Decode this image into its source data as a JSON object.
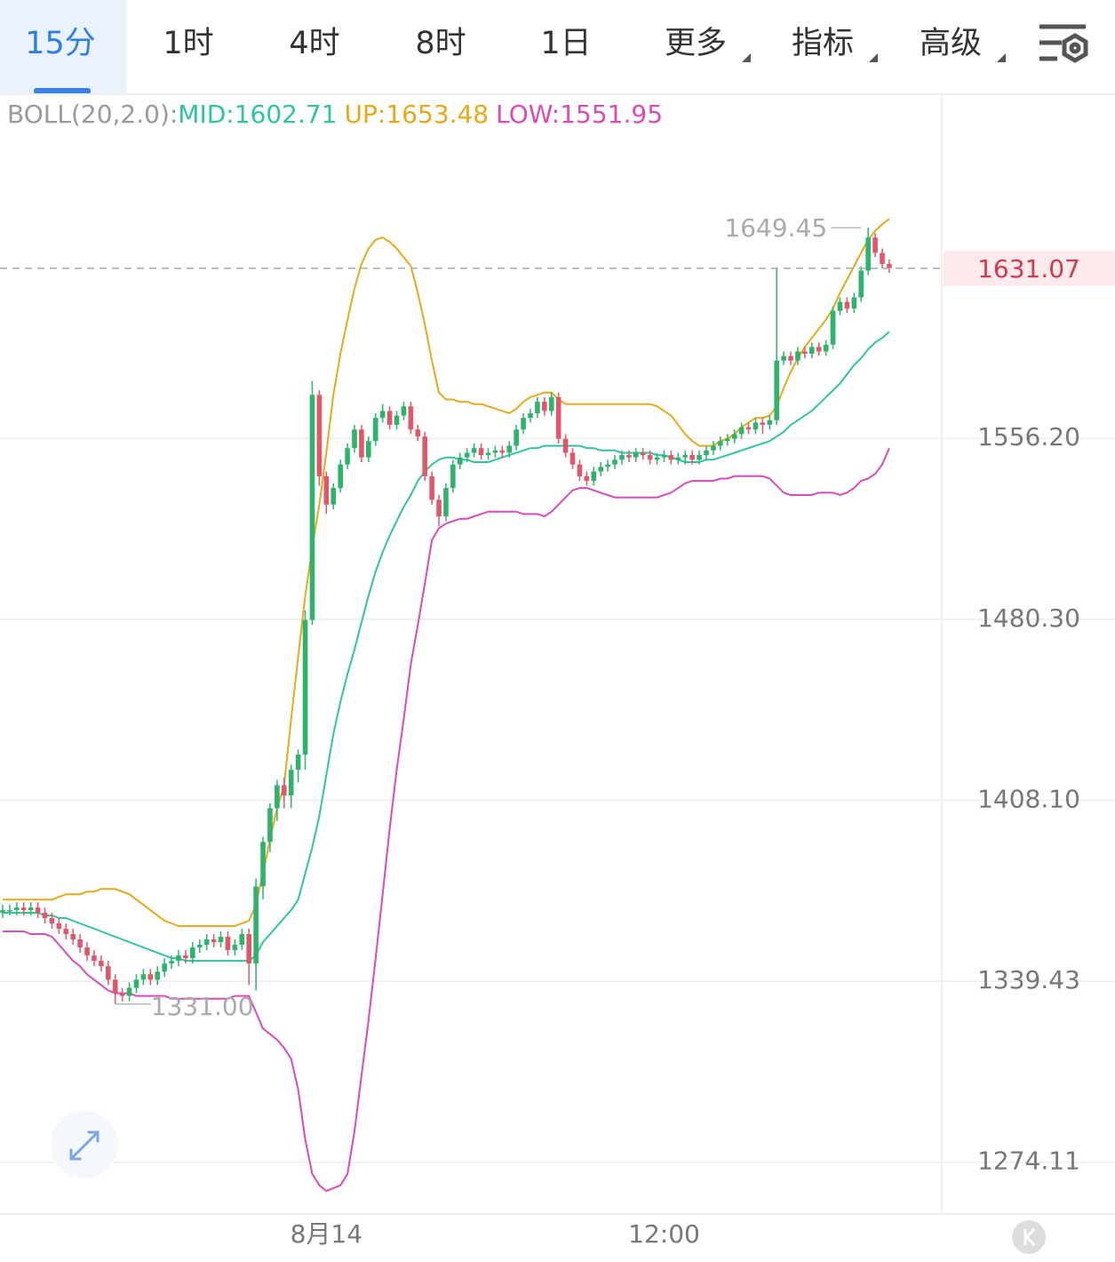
{
  "tabs": [
    "15分",
    "1时",
    "4时",
    "8时",
    "1日",
    "更多",
    "指标",
    "高级"
  ],
  "active_tab": 0,
  "chart_data": {
    "type": "candlestick",
    "indicator": "BOLL(20,2.0):",
    "categories": [
      null,
      null,
      null,
      null,
      null,
      null,
      null,
      null,
      null,
      null,
      null,
      null,
      null,
      null,
      null,
      null,
      null,
      null,
      null,
      null,
      null,
      null,
      null,
      null,
      null,
      null,
      null,
      null,
      null,
      null,
      null,
      null,
      null,
      null,
      null,
      null,
      null,
      null,
      null,
      null,
      null,
      null,
      null,
      null,
      null,
      null,
      "8月14",
      null,
      null,
      null,
      null,
      null,
      null,
      null,
      null,
      null,
      null,
      null,
      null,
      null,
      null,
      null,
      null,
      null,
      null,
      null,
      null,
      null,
      null,
      null,
      null,
      null,
      null,
      null,
      null,
      null,
      null,
      null,
      null,
      null,
      null,
      null,
      null,
      null,
      null,
      null,
      null,
      null,
      null,
      null,
      null,
      null,
      null,
      null,
      "12:00",
      null,
      null,
      null,
      null,
      null,
      null,
      null,
      null,
      null,
      null,
      null,
      null,
      null,
      null,
      null,
      null,
      null,
      null,
      null,
      null,
      null,
      null,
      null,
      null,
      null,
      null,
      null,
      null,
      null,
      null,
      null,
      null
    ],
    "open": [
      1365,
      1366,
      1366,
      1367,
      1366,
      1367,
      1365,
      1363,
      1361,
      1359,
      1357,
      1355,
      1352,
      1349,
      1347,
      1345,
      1340,
      1335,
      1334,
      1337,
      1340,
      1342,
      1340,
      1343,
      1346,
      1347,
      1349,
      1348,
      1352,
      1353,
      1355,
      1354,
      1356,
      1351,
      1353,
      1357,
      1346,
      1375,
      1392,
      1405,
      1414,
      1410,
      1420,
      1426,
      1480,
      1575,
      1540,
      1528,
      1535,
      1545,
      1552,
      1560,
      1548,
      1555,
      1565,
      1568,
      1562,
      1566,
      1570,
      1560,
      1557,
      1540,
      1530,
      1523,
      1535,
      1545,
      1548,
      1550,
      1552,
      1549,
      1550,
      1551,
      1550,
      1553,
      1560,
      1565,
      1567,
      1572,
      1568,
      1574,
      1556,
      1550,
      1545,
      1540,
      1538,
      1542,
      1544,
      1545,
      1547,
      1549,
      1548,
      1550,
      1549,
      1547,
      1548,
      1549,
      1547,
      1548,
      1549,
      1547,
      1549,
      1551,
      1553,
      1555,
      1556,
      1558,
      1561,
      1560,
      1563,
      1562,
      1564,
      1590,
      1592,
      1590,
      1594,
      1593,
      1596,
      1594,
      1597,
      1612,
      1616,
      1613,
      1618,
      1630,
      1645,
      1638,
      1633
    ],
    "high": [
      1368,
      1368,
      1369,
      1369,
      1369,
      1369,
      1367,
      1365,
      1363,
      1361,
      1359,
      1357,
      1354,
      1351,
      1349,
      1347,
      1342,
      1337,
      1339,
      1342,
      1344,
      1344,
      1345,
      1348,
      1349,
      1351,
      1351,
      1354,
      1355,
      1357,
      1357,
      1358,
      1358,
      1355,
      1359,
      1359,
      1378,
      1394,
      1407,
      1416,
      1417,
      1422,
      1428,
      1484,
      1581,
      1577,
      1542,
      1537,
      1547,
      1554,
      1562,
      1562,
      1557,
      1567,
      1571,
      1570,
      1568,
      1572,
      1572,
      1562,
      1559,
      1542,
      1532,
      1537,
      1547,
      1550,
      1552,
      1554,
      1554,
      1552,
      1553,
      1553,
      1555,
      1562,
      1567,
      1569,
      1574,
      1574,
      1576,
      1576,
      1558,
      1552,
      1547,
      1542,
      1544,
      1546,
      1547,
      1549,
      1551,
      1551,
      1552,
      1552,
      1551,
      1550,
      1551,
      1551,
      1550,
      1551,
      1551,
      1551,
      1553,
      1555,
      1557,
      1558,
      1560,
      1563,
      1563,
      1565,
      1565,
      1566,
      1631,
      1594,
      1594,
      1596,
      1596,
      1598,
      1598,
      1599,
      1614,
      1618,
      1618,
      1620,
      1632,
      1649.45,
      1647,
      1640,
      1635
    ],
    "low": [
      1363,
      1364,
      1364,
      1364,
      1364,
      1363,
      1361,
      1359,
      1357,
      1355,
      1353,
      1350,
      1347,
      1345,
      1343,
      1338,
      1331,
      1332,
      1332,
      1335,
      1338,
      1338,
      1338,
      1341,
      1344,
      1345,
      1346,
      1346,
      1350,
      1351,
      1352,
      1352,
      1349,
      1349,
      1351,
      1338,
      1336,
      1370,
      1388,
      1400,
      1405,
      1405,
      1415,
      1420,
      1478,
      1536,
      1524,
      1526,
      1533,
      1543,
      1550,
      1546,
      1546,
      1553,
      1563,
      1560,
      1560,
      1564,
      1558,
      1555,
      1538,
      1528,
      1519,
      1521,
      1533,
      1543,
      1546,
      1548,
      1547,
      1547,
      1548,
      1548,
      1548,
      1551,
      1558,
      1563,
      1565,
      1566,
      1566,
      1554,
      1548,
      1543,
      1538,
      1536,
      1536,
      1540,
      1542,
      1543,
      1545,
      1546,
      1546,
      1547,
      1545,
      1545,
      1546,
      1545,
      1545,
      1545,
      1545,
      1545,
      1547,
      1549,
      1551,
      1553,
      1554,
      1556,
      1558,
      1558,
      1558,
      1560,
      1562,
      1588,
      1588,
      1588,
      1591,
      1591,
      1592,
      1592,
      1595,
      1610,
      1611,
      1611,
      1616,
      1628,
      1636,
      1631,
      1629
    ],
    "close": [
      1366,
      1366,
      1367,
      1366,
      1367,
      1365,
      1363,
      1361,
      1359,
      1357,
      1355,
      1352,
      1349,
      1347,
      1345,
      1340,
      1335,
      1334,
      1337,
      1340,
      1342,
      1340,
      1343,
      1346,
      1347,
      1349,
      1348,
      1352,
      1353,
      1355,
      1354,
      1356,
      1351,
      1353,
      1357,
      1346,
      1375,
      1392,
      1405,
      1414,
      1410,
      1420,
      1426,
      1480,
      1575,
      1540,
      1528,
      1535,
      1545,
      1552,
      1560,
      1548,
      1555,
      1565,
      1568,
      1562,
      1566,
      1570,
      1560,
      1557,
      1540,
      1530,
      1523,
      1535,
      1545,
      1548,
      1550,
      1552,
      1549,
      1550,
      1551,
      1550,
      1553,
      1560,
      1565,
      1567,
      1572,
      1568,
      1574,
      1556,
      1550,
      1545,
      1540,
      1538,
      1542,
      1544,
      1545,
      1547,
      1549,
      1548,
      1550,
      1549,
      1547,
      1548,
      1549,
      1547,
      1548,
      1549,
      1547,
      1549,
      1551,
      1553,
      1555,
      1556,
      1558,
      1561,
      1560,
      1563,
      1562,
      1564,
      1590,
      1592,
      1590,
      1594,
      1593,
      1596,
      1594,
      1597,
      1612,
      1616,
      1613,
      1618,
      1630,
      1645,
      1638,
      1633,
      1631.07
    ],
    "up_color": "#2db46a",
    "down_color": "#e2566b",
    "series": [
      {
        "label": "MID:1602.71",
        "color": "#2ec4a0",
        "values": [
          1365,
          1365,
          1365,
          1365,
          1365,
          1365,
          1364,
          1364,
          1363,
          1363,
          1362,
          1361,
          1360,
          1359,
          1358,
          1357,
          1356,
          1355,
          1354,
          1353,
          1352,
          1351,
          1350,
          1349,
          1348,
          1348,
          1347,
          1347,
          1347,
          1347,
          1347,
          1347,
          1347,
          1347,
          1347,
          1347,
          1349,
          1354,
          1357,
          1360,
          1363,
          1366,
          1370,
          1380,
          1390,
          1402,
          1418,
          1434,
          1447,
          1458,
          1468,
          1479,
          1490,
          1500,
          1508,
          1515,
          1521,
          1527,
          1532,
          1538,
          1542,
          1545,
          1547,
          1548,
          1548,
          1547,
          1547,
          1546,
          1546,
          1546,
          1547,
          1548,
          1549,
          1550,
          1551,
          1552,
          1552,
          1553,
          1553,
          1553,
          1553,
          1553,
          1553,
          1552,
          1552,
          1551,
          1551,
          1551,
          1550,
          1550,
          1550,
          1550,
          1550,
          1549,
          1549,
          1548,
          1547,
          1546,
          1546,
          1546,
          1547,
          1547,
          1548,
          1549,
          1550,
          1551,
          1552,
          1553,
          1554,
          1555,
          1557,
          1559,
          1562,
          1564,
          1566,
          1568,
          1571,
          1574,
          1577,
          1580,
          1584,
          1588,
          1591,
          1595,
          1598,
          1600,
          1602.71
        ]
      },
      {
        "label": "UP:1653.48",
        "color": "#e5a91a",
        "values": [
          1370,
          1370,
          1370,
          1370,
          1370,
          1370,
          1370,
          1370,
          1371,
          1372,
          1372,
          1372,
          1373,
          1373,
          1374,
          1374,
          1374,
          1373,
          1372,
          1370,
          1368,
          1366,
          1364,
          1362,
          1361,
          1360,
          1360,
          1360,
          1360,
          1360,
          1360,
          1360,
          1360,
          1360,
          1361,
          1362,
          1368,
          1380,
          1393,
          1405,
          1414,
          1440,
          1465,
          1490,
          1510,
          1528,
          1550,
          1575,
          1593,
          1608,
          1622,
          1633,
          1640,
          1644,
          1645,
          1643,
          1640,
          1636,
          1632,
          1620,
          1606,
          1590,
          1576,
          1573,
          1573,
          1572,
          1572,
          1571,
          1571,
          1570,
          1569,
          1568,
          1567,
          1569,
          1572,
          1574,
          1575,
          1576,
          1576,
          1573,
          1571,
          1571,
          1571,
          1571,
          1571,
          1571,
          1571,
          1571,
          1571,
          1571,
          1571,
          1571,
          1571,
          1570,
          1568,
          1566,
          1562,
          1558,
          1555,
          1553,
          1553,
          1553,
          1555,
          1556,
          1558,
          1561,
          1563,
          1565,
          1565,
          1566,
          1570,
          1578,
          1585,
          1591,
          1596,
          1600,
          1604,
          1608,
          1613,
          1620,
          1626,
          1632,
          1638,
          1644,
          1648,
          1651,
          1653.48
        ]
      },
      {
        "label": "LOW:1551.95",
        "color": "#d94bb8",
        "values": [
          1358,
          1358,
          1358,
          1358,
          1357,
          1357,
          1357,
          1356,
          1353,
          1350,
          1347,
          1345,
          1342,
          1340,
          1338,
          1336,
          1335,
          1335,
          1335,
          1334,
          1334,
          1334,
          1334,
          1334,
          1333,
          1333,
          1333,
          1333,
          1333,
          1333,
          1333,
          1333,
          1333,
          1334,
          1334,
          1334,
          1328,
          1322,
          1320,
          1318,
          1315,
          1311,
          1300,
          1282,
          1270,
          1266,
          1264,
          1265,
          1266,
          1270,
          1285,
          1305,
          1325,
          1348,
          1372,
          1397,
          1420,
          1440,
          1462,
          1478,
          1495,
          1513,
          1518,
          1520,
          1521,
          1522,
          1522,
          1523,
          1524,
          1525,
          1525,
          1525,
          1525,
          1525,
          1524,
          1524,
          1524,
          1523,
          1525,
          1528,
          1531,
          1534,
          1535,
          1535,
          1534,
          1533,
          1532,
          1531,
          1531,
          1531,
          1531,
          1531,
          1531,
          1531,
          1532,
          1533,
          1535,
          1537,
          1538,
          1538,
          1538,
          1538,
          1539,
          1539,
          1540,
          1540,
          1540,
          1540,
          1540,
          1539,
          1536,
          1533,
          1532,
          1532,
          1532,
          1532,
          1533,
          1533,
          1533,
          1532,
          1533,
          1535,
          1538,
          1539,
          1541,
          1545,
          1551.95
        ]
      }
    ],
    "ylim": [
      1256,
      1711
    ],
    "log_scale": true,
    "yticks": [
      {
        "value": 1556.2,
        "label": "1556.20"
      },
      {
        "value": 1480.3,
        "label": "1480.30"
      },
      {
        "value": 1408.1,
        "label": "1408.10"
      },
      1339.43,
      1274.11
    ],
    "grid": true,
    "high_label": "1649.45",
    "low_label": "1331.00",
    "last_label": "1631.07"
  }
}
